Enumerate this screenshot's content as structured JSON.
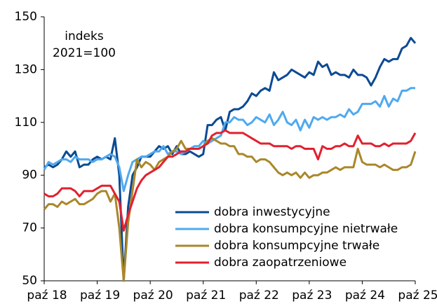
{
  "chart_data": {
    "type": "line",
    "annotation": [
      "indeks",
      "2021=100"
    ],
    "categories": [
      "paź 18",
      null,
      null,
      null,
      null,
      null,
      null,
      null,
      null,
      null,
      null,
      null,
      "paź 19",
      null,
      null,
      null,
      null,
      null,
      null,
      null,
      null,
      null,
      null,
      null,
      "paź 20",
      null,
      null,
      null,
      null,
      null,
      null,
      null,
      null,
      null,
      null,
      null,
      "paź 21",
      null,
      null,
      null,
      null,
      null,
      null,
      null,
      null,
      null,
      null,
      null,
      "paź 22",
      null,
      null,
      null,
      null,
      null,
      null,
      null,
      null,
      null,
      null,
      null,
      "paź 23",
      null,
      null,
      null,
      null,
      null,
      null,
      null,
      null,
      null,
      null,
      null,
      "paź 24",
      null,
      null,
      null,
      null,
      null,
      null,
      null,
      null,
      null,
      null,
      null,
      "paź 25"
    ],
    "series": [
      {
        "name": "dobra inwestycyjne",
        "color": "#0b4a93",
        "values": [
          93,
          94,
          93,
          94,
          96,
          99,
          97,
          99,
          93,
          94,
          94,
          96,
          97,
          96,
          97,
          96,
          104,
          90,
          50,
          78,
          90,
          93,
          97,
          97,
          97,
          99,
          101,
          100,
          101,
          98,
          101,
          98,
          98,
          99,
          98,
          97,
          98,
          109,
          109,
          111,
          112,
          107,
          114,
          115,
          115,
          116,
          118,
          121,
          120,
          122,
          123,
          122,
          129,
          126,
          127,
          128,
          130,
          129,
          128,
          127,
          129,
          128,
          133,
          131,
          132,
          128,
          129,
          128,
          128,
          127,
          130,
          128,
          128,
          127,
          124,
          127,
          131,
          134,
          133,
          134,
          134,
          138,
          139,
          142,
          140
        ]
      },
      {
        "name": "dobra konsumpcyjne nietrwałe",
        "color": "#4fa9ef",
        "values": [
          92,
          95,
          94,
          95,
          96,
          96,
          95,
          97,
          96,
          96,
          96,
          95,
          96,
          96,
          97,
          98,
          97,
          93,
          84,
          90,
          95,
          96,
          97,
          97,
          98,
          99,
          99,
          101,
          98,
          99,
          99,
          98,
          99,
          100,
          101,
          101,
          103,
          102,
          103,
          104,
          105,
          110,
          110,
          112,
          111,
          111,
          109,
          110,
          112,
          111,
          110,
          113,
          109,
          111,
          114,
          110,
          109,
          111,
          107,
          111,
          108,
          112,
          111,
          112,
          111,
          112,
          112,
          113,
          112,
          115,
          113,
          114,
          117,
          117,
          117,
          118,
          116,
          120,
          116,
          119,
          118,
          122,
          122,
          123,
          123
        ]
      },
      {
        "name": "dobra konsumpcyjne trwałe",
        "color": "#a9872a",
        "values": [
          77,
          79,
          79,
          78,
          80,
          79,
          80,
          81,
          79,
          79,
          80,
          81,
          83,
          84,
          84,
          80,
          83,
          70,
          50,
          72,
          84,
          96,
          93,
          95,
          94,
          92,
          95,
          96,
          97,
          99,
          100,
          103,
          100,
          100,
          100,
          100,
          101,
          103,
          104,
          103,
          102,
          102,
          101,
          101,
          98,
          98,
          97,
          97,
          95,
          96,
          96,
          95,
          93,
          91,
          90,
          91,
          90,
          91,
          89,
          91,
          89,
          90,
          90,
          91,
          91,
          92,
          93,
          92,
          93,
          93,
          93,
          100,
          95,
          94,
          94,
          94,
          93,
          94,
          93,
          92,
          92,
          93,
          93,
          94,
          99
        ]
      },
      {
        "name": "dobra zaopatrzeniowe",
        "color": "#e2202f",
        "values": [
          83,
          82,
          82,
          83,
          85,
          85,
          85,
          84,
          82,
          84,
          84,
          84,
          85,
          86,
          86,
          86,
          83,
          80,
          69,
          75,
          80,
          85,
          88,
          90,
          91,
          92,
          93,
          95,
          97,
          97,
          98,
          99,
          99,
          100,
          100,
          100,
          101,
          102,
          105,
          106,
          106,
          107,
          106,
          106,
          106,
          106,
          105,
          104,
          103,
          102,
          102,
          102,
          101,
          101,
          101,
          101,
          100,
          101,
          101,
          100,
          100,
          100,
          96,
          101,
          100,
          100,
          101,
          101,
          102,
          101,
          101,
          105,
          102,
          102,
          102,
          101,
          101,
          102,
          101,
          102,
          102,
          102,
          102,
          103,
          106
        ]
      }
    ],
    "ylim": [
      50,
      150
    ],
    "yticks": [
      50,
      70,
      90,
      110,
      130,
      150
    ],
    "grid": false,
    "legend": "lower-right"
  }
}
